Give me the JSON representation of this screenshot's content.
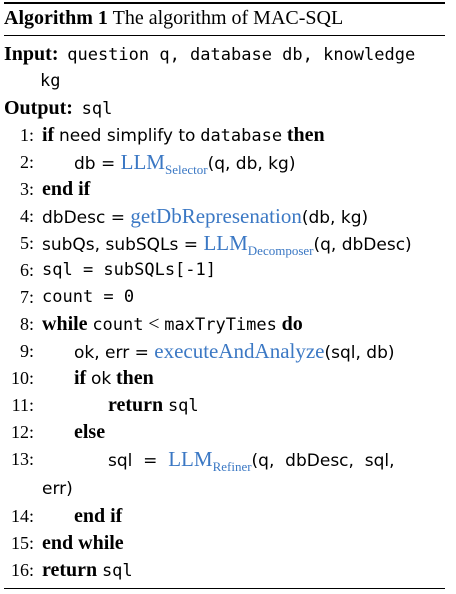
{
  "algorithm": {
    "label": "Algorithm 1",
    "caption": "The algorithm of MAC-SQL",
    "input_label": "Input:",
    "input_text": "question  q, database  db, knowledge",
    "input_text_cont": "kg",
    "output_label": "Output:",
    "output_text": "sql"
  },
  "lines": {
    "l1": {
      "n": "1:",
      "kw_if": "if",
      "t1": "need simplify to",
      "t2": "database",
      "kw_then": "then"
    },
    "l2": {
      "n": "2:",
      "pre": "db = ",
      "fn": "LLM",
      "sub": "Selector",
      "post": "(q, db, kg)"
    },
    "l3": {
      "n": "3:",
      "kw": "end if"
    },
    "l4": {
      "n": "4:",
      "pre": "dbDesc = ",
      "fn": "getDbRepresenation",
      "post": "(db, kg)"
    },
    "l5": {
      "n": "5:",
      "pre": "subQs, subSQLs = ",
      "fn": "LLM",
      "sub": "Decomposer",
      "post": "(q, dbDesc)"
    },
    "l6": {
      "n": "6:",
      "code": "sql = subSQLs[-1]"
    },
    "l7": {
      "n": "7:",
      "code": "count = 0"
    },
    "l8": {
      "n": "8:",
      "kw_while": "while",
      "t1": "count",
      "lt": "<",
      "t2": "maxTryTimes",
      "kw_do": "do"
    },
    "l9": {
      "n": "9:",
      "pre": "ok, err = ",
      "fn": "executeAndAnalyze",
      "post": "(sql, db)"
    },
    "l10": {
      "n": "10:",
      "kw_if": "if",
      "t1": "ok",
      "kw_then": "then"
    },
    "l11": {
      "n": "11:",
      "kw": "return",
      "t1": "sql"
    },
    "l12": {
      "n": "12:",
      "kw": "else"
    },
    "l13": {
      "n": "13:",
      "pre": "sql  =  ",
      "fn": "LLM",
      "sub": "Refiner",
      "post": "(q,  dbDesc,  sql,",
      "cont": "err)"
    },
    "l14": {
      "n": "14:",
      "kw": "end if"
    },
    "l15": {
      "n": "15:",
      "kw": "end while"
    },
    "l16": {
      "n": "16:",
      "kw": "return",
      "t1": "sql"
    }
  }
}
